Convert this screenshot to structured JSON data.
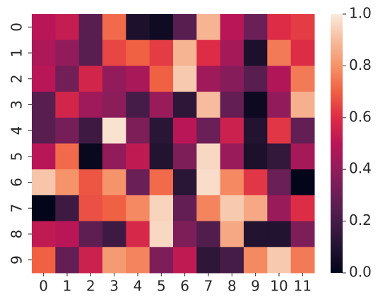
{
  "chart_data": {
    "type": "heatmap",
    "colormap": "rocket",
    "x": [
      "0",
      "1",
      "2",
      "3",
      "4",
      "5",
      "6",
      "7",
      "8",
      "9",
      "10",
      "11"
    ],
    "y": [
      "0",
      "1",
      "2",
      "3",
      "4",
      "5",
      "6",
      "7",
      "8",
      "9"
    ],
    "values": [
      [
        0.5,
        0.53,
        0.25,
        0.72,
        0.08,
        0.04,
        0.25,
        0.88,
        0.5,
        0.3,
        0.6,
        0.63
      ],
      [
        0.47,
        0.4,
        0.25,
        0.65,
        0.7,
        0.63,
        0.88,
        0.6,
        0.45,
        0.08,
        0.75,
        0.6
      ],
      [
        0.5,
        0.32,
        0.57,
        0.4,
        0.46,
        0.7,
        0.93,
        0.43,
        0.37,
        0.25,
        0.48,
        0.75
      ],
      [
        0.25,
        0.57,
        0.43,
        0.38,
        0.2,
        0.42,
        0.13,
        0.9,
        0.28,
        0.03,
        0.4,
        0.87
      ],
      [
        0.25,
        0.33,
        0.18,
        0.98,
        0.35,
        0.12,
        0.5,
        0.3,
        0.55,
        0.1,
        0.62,
        0.28
      ],
      [
        0.5,
        0.72,
        0.02,
        0.4,
        0.52,
        0.1,
        0.35,
        0.96,
        0.42,
        0.08,
        0.15,
        0.45
      ],
      [
        0.92,
        0.8,
        0.68,
        0.8,
        0.3,
        0.72,
        0.12,
        0.97,
        0.78,
        0.62,
        0.3,
        0.0
      ],
      [
        0.0,
        0.18,
        0.67,
        0.7,
        0.78,
        0.95,
        0.28,
        0.77,
        0.93,
        0.85,
        0.42,
        0.6
      ],
      [
        0.52,
        0.5,
        0.27,
        0.18,
        0.58,
        0.96,
        0.35,
        0.23,
        0.85,
        0.1,
        0.1,
        0.35
      ],
      [
        0.7,
        0.28,
        0.55,
        0.82,
        0.77,
        0.35,
        0.52,
        0.13,
        0.2,
        0.78,
        0.93,
        0.75
      ]
    ],
    "zlim": [
      0,
      1
    ],
    "zticks": [
      {
        "value": 0,
        "label": "0.0"
      },
      {
        "value": 0.2,
        "label": "0.2"
      },
      {
        "value": 0.4,
        "label": "0.4"
      },
      {
        "value": 0.6,
        "label": "0.6"
      },
      {
        "value": 0.8,
        "label": "0.8"
      },
      {
        "value": 1,
        "label": "1.0"
      }
    ]
  }
}
